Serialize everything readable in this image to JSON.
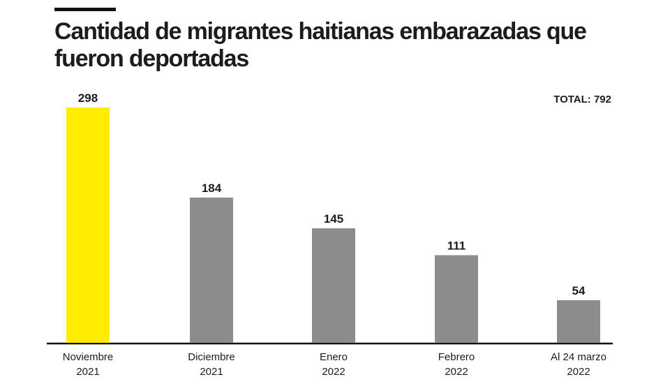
{
  "title": "Cantidad de migrantes haitianas embarazadas que fueron deportadas",
  "total_label": "TOTAL: 792",
  "chart_data": {
    "type": "bar",
    "title": "Cantidad de migrantes haitianas embarazadas que fueron deportadas",
    "categories": [
      [
        "Noviembre",
        "2021"
      ],
      [
        "Diciembre",
        "2021"
      ],
      [
        "Enero",
        "2022"
      ],
      [
        "Febrero",
        "2022"
      ],
      [
        "Al 24 marzo",
        "2022"
      ]
    ],
    "values": [
      298,
      184,
      145,
      111,
      54
    ],
    "colors": [
      "#ffec00",
      "#8c8c8c",
      "#8c8c8c",
      "#8c8c8c",
      "#8c8c8c"
    ],
    "xlabel": "",
    "ylabel": "",
    "ylim": [
      0,
      298
    ],
    "grid": false,
    "annotation": "TOTAL: 792"
  }
}
